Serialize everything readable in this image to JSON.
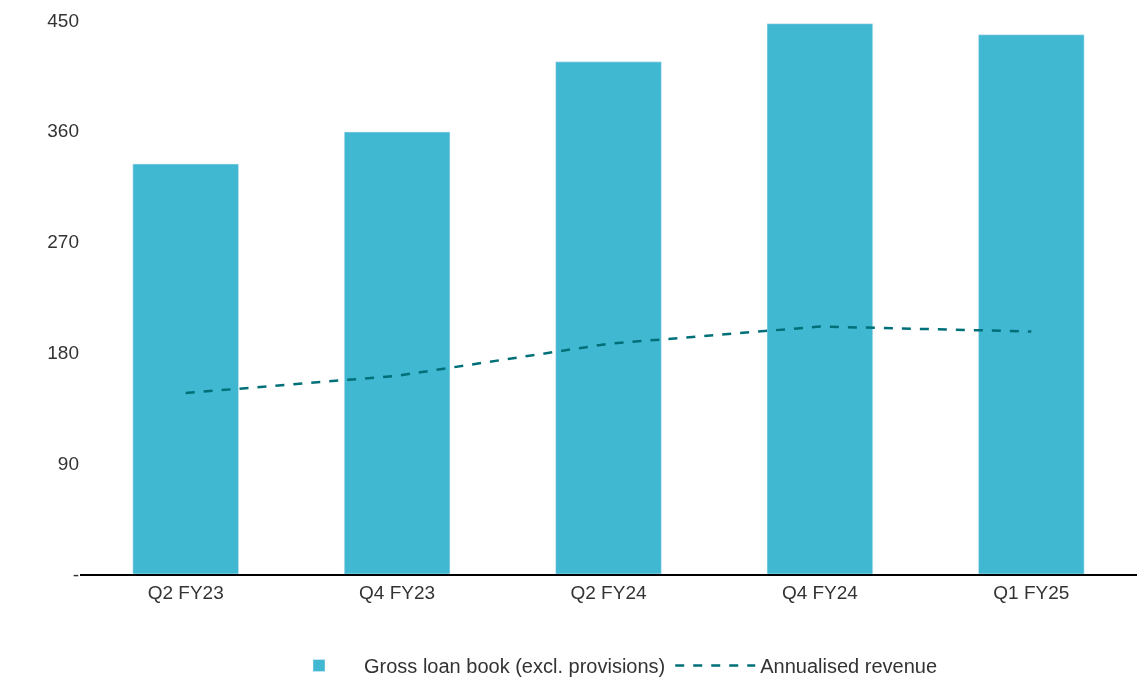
{
  "chart_data": {
    "type": "bar",
    "categories": [
      "Q2 FY23",
      "Q4 FY23",
      "Q2 FY24",
      "Q4 FY24",
      "Q1 FY25"
    ],
    "series": [
      {
        "name": "Gross loan book (excl. provisions)",
        "color": "#41b8d2",
        "values": [
          333,
          359,
          416,
          447,
          438
        ]
      },
      {
        "name": "Annualised revenue",
        "type": "line",
        "color": "#007078",
        "line_style": "dashed",
        "values": [
          147,
          161,
          187,
          201,
          197
        ]
      }
    ],
    "ylim": [
      0,
      450
    ],
    "yticks": [
      {
        "value": 0,
        "label": "-"
      },
      90,
      180,
      270,
      360,
      450
    ],
    "legend": "bottom"
  }
}
